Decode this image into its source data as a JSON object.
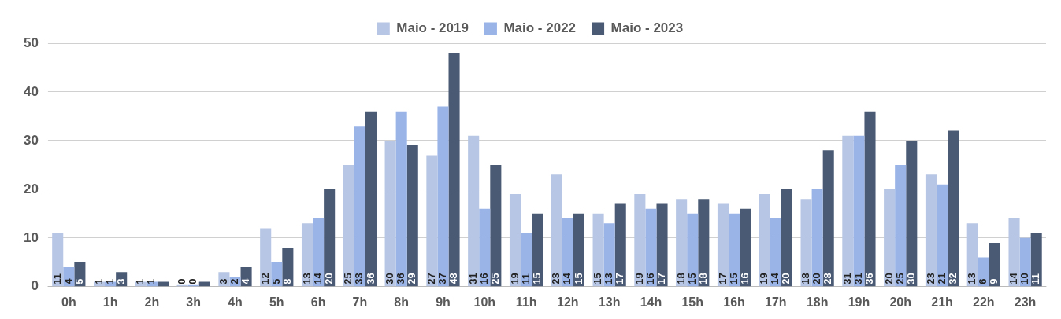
{
  "chart_data": {
    "type": "bar",
    "categories": [
      "0h",
      "1h",
      "2h",
      "3h",
      "4h",
      "5h",
      "6h",
      "7h",
      "8h",
      "9h",
      "10h",
      "11h",
      "12h",
      "13h",
      "14h",
      "15h",
      "16h",
      "17h",
      "18h",
      "19h",
      "20h",
      "21h",
      "22h",
      "23h"
    ],
    "series": [
      {
        "name": "Maio - 2019",
        "color": "#b7c6e4",
        "values": [
          11,
          1,
          1,
          0,
          3,
          12,
          13,
          25,
          30,
          27,
          31,
          19,
          23,
          15,
          19,
          18,
          17,
          19,
          18,
          31,
          20,
          23,
          13,
          14
        ]
      },
      {
        "name": "Maio - 2022",
        "color": "#9ab4e8",
        "values": [
          4,
          1,
          1,
          0,
          2,
          5,
          14,
          33,
          36,
          37,
          16,
          11,
          14,
          13,
          16,
          15,
          15,
          14,
          20,
          31,
          25,
          21,
          6,
          10
        ]
      },
      {
        "name": "Maio - 2023",
        "color": "#4a5a75",
        "values": [
          5,
          3,
          1,
          1,
          4,
          8,
          20,
          36,
          29,
          48,
          25,
          15,
          15,
          17,
          17,
          18,
          16,
          20,
          28,
          36,
          30,
          32,
          9,
          11
        ],
        "value_labels": [
          "5",
          "3",
          null,
          null,
          "4",
          "8",
          "20",
          "36",
          "29",
          "48",
          "25",
          "15",
          "15",
          "17",
          "17",
          "18",
          "16",
          "20",
          "28",
          "36",
          "30",
          "32",
          "9",
          "11"
        ]
      }
    ],
    "ylim": [
      0,
      50
    ],
    "yticks": [
      0,
      10,
      20,
      30,
      40,
      50
    ],
    "grid": "y",
    "legend": "top",
    "data_labels": true
  }
}
